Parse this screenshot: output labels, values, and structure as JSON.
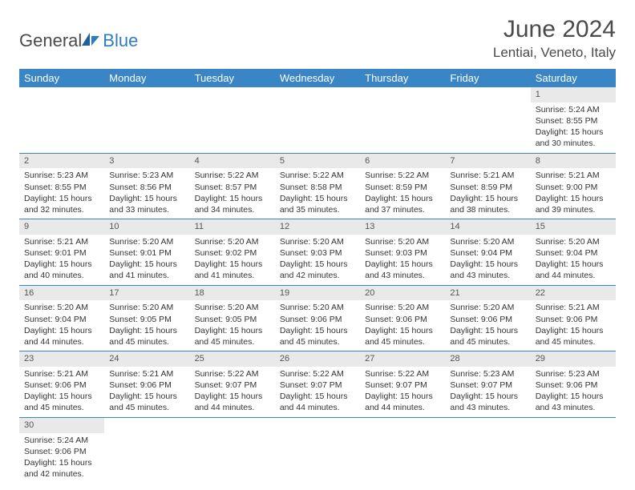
{
  "brand": {
    "name1": "General",
    "name2": "Blue"
  },
  "title": "June 2024",
  "location": "Lentiai, Veneto, Italy",
  "colors": {
    "header_bg": "#3a85c6",
    "header_text": "#ffffff",
    "daynum_bg": "#e9e9e9",
    "border": "#3a85c6",
    "logo_blue": "#2f7cc0",
    "text": "#333333"
  },
  "weekdays": [
    "Sunday",
    "Monday",
    "Tuesday",
    "Wednesday",
    "Thursday",
    "Friday",
    "Saturday"
  ],
  "weeks": [
    [
      {
        "empty": true
      },
      {
        "empty": true
      },
      {
        "empty": true
      },
      {
        "empty": true
      },
      {
        "empty": true
      },
      {
        "empty": true
      },
      {
        "day": "1",
        "sunrise": "Sunrise: 5:24 AM",
        "sunset": "Sunset: 8:55 PM",
        "daylight": "Daylight: 15 hours and 30 minutes."
      }
    ],
    [
      {
        "day": "2",
        "sunrise": "Sunrise: 5:23 AM",
        "sunset": "Sunset: 8:55 PM",
        "daylight": "Daylight: 15 hours and 32 minutes."
      },
      {
        "day": "3",
        "sunrise": "Sunrise: 5:23 AM",
        "sunset": "Sunset: 8:56 PM",
        "daylight": "Daylight: 15 hours and 33 minutes."
      },
      {
        "day": "4",
        "sunrise": "Sunrise: 5:22 AM",
        "sunset": "Sunset: 8:57 PM",
        "daylight": "Daylight: 15 hours and 34 minutes."
      },
      {
        "day": "5",
        "sunrise": "Sunrise: 5:22 AM",
        "sunset": "Sunset: 8:58 PM",
        "daylight": "Daylight: 15 hours and 35 minutes."
      },
      {
        "day": "6",
        "sunrise": "Sunrise: 5:22 AM",
        "sunset": "Sunset: 8:59 PM",
        "daylight": "Daylight: 15 hours and 37 minutes."
      },
      {
        "day": "7",
        "sunrise": "Sunrise: 5:21 AM",
        "sunset": "Sunset: 8:59 PM",
        "daylight": "Daylight: 15 hours and 38 minutes."
      },
      {
        "day": "8",
        "sunrise": "Sunrise: 5:21 AM",
        "sunset": "Sunset: 9:00 PM",
        "daylight": "Daylight: 15 hours and 39 minutes."
      }
    ],
    [
      {
        "day": "9",
        "sunrise": "Sunrise: 5:21 AM",
        "sunset": "Sunset: 9:01 PM",
        "daylight": "Daylight: 15 hours and 40 minutes."
      },
      {
        "day": "10",
        "sunrise": "Sunrise: 5:20 AM",
        "sunset": "Sunset: 9:01 PM",
        "daylight": "Daylight: 15 hours and 41 minutes."
      },
      {
        "day": "11",
        "sunrise": "Sunrise: 5:20 AM",
        "sunset": "Sunset: 9:02 PM",
        "daylight": "Daylight: 15 hours and 41 minutes."
      },
      {
        "day": "12",
        "sunrise": "Sunrise: 5:20 AM",
        "sunset": "Sunset: 9:03 PM",
        "daylight": "Daylight: 15 hours and 42 minutes."
      },
      {
        "day": "13",
        "sunrise": "Sunrise: 5:20 AM",
        "sunset": "Sunset: 9:03 PM",
        "daylight": "Daylight: 15 hours and 43 minutes."
      },
      {
        "day": "14",
        "sunrise": "Sunrise: 5:20 AM",
        "sunset": "Sunset: 9:04 PM",
        "daylight": "Daylight: 15 hours and 43 minutes."
      },
      {
        "day": "15",
        "sunrise": "Sunrise: 5:20 AM",
        "sunset": "Sunset: 9:04 PM",
        "daylight": "Daylight: 15 hours and 44 minutes."
      }
    ],
    [
      {
        "day": "16",
        "sunrise": "Sunrise: 5:20 AM",
        "sunset": "Sunset: 9:04 PM",
        "daylight": "Daylight: 15 hours and 44 minutes."
      },
      {
        "day": "17",
        "sunrise": "Sunrise: 5:20 AM",
        "sunset": "Sunset: 9:05 PM",
        "daylight": "Daylight: 15 hours and 45 minutes."
      },
      {
        "day": "18",
        "sunrise": "Sunrise: 5:20 AM",
        "sunset": "Sunset: 9:05 PM",
        "daylight": "Daylight: 15 hours and 45 minutes."
      },
      {
        "day": "19",
        "sunrise": "Sunrise: 5:20 AM",
        "sunset": "Sunset: 9:06 PM",
        "daylight": "Daylight: 15 hours and 45 minutes."
      },
      {
        "day": "20",
        "sunrise": "Sunrise: 5:20 AM",
        "sunset": "Sunset: 9:06 PM",
        "daylight": "Daylight: 15 hours and 45 minutes."
      },
      {
        "day": "21",
        "sunrise": "Sunrise: 5:20 AM",
        "sunset": "Sunset: 9:06 PM",
        "daylight": "Daylight: 15 hours and 45 minutes."
      },
      {
        "day": "22",
        "sunrise": "Sunrise: 5:21 AM",
        "sunset": "Sunset: 9:06 PM",
        "daylight": "Daylight: 15 hours and 45 minutes."
      }
    ],
    [
      {
        "day": "23",
        "sunrise": "Sunrise: 5:21 AM",
        "sunset": "Sunset: 9:06 PM",
        "daylight": "Daylight: 15 hours and 45 minutes."
      },
      {
        "day": "24",
        "sunrise": "Sunrise: 5:21 AM",
        "sunset": "Sunset: 9:06 PM",
        "daylight": "Daylight: 15 hours and 45 minutes."
      },
      {
        "day": "25",
        "sunrise": "Sunrise: 5:22 AM",
        "sunset": "Sunset: 9:07 PM",
        "daylight": "Daylight: 15 hours and 44 minutes."
      },
      {
        "day": "26",
        "sunrise": "Sunrise: 5:22 AM",
        "sunset": "Sunset: 9:07 PM",
        "daylight": "Daylight: 15 hours and 44 minutes."
      },
      {
        "day": "27",
        "sunrise": "Sunrise: 5:22 AM",
        "sunset": "Sunset: 9:07 PM",
        "daylight": "Daylight: 15 hours and 44 minutes."
      },
      {
        "day": "28",
        "sunrise": "Sunrise: 5:23 AM",
        "sunset": "Sunset: 9:07 PM",
        "daylight": "Daylight: 15 hours and 43 minutes."
      },
      {
        "day": "29",
        "sunrise": "Sunrise: 5:23 AM",
        "sunset": "Sunset: 9:06 PM",
        "daylight": "Daylight: 15 hours and 43 minutes."
      }
    ],
    [
      {
        "day": "30",
        "sunrise": "Sunrise: 5:24 AM",
        "sunset": "Sunset: 9:06 PM",
        "daylight": "Daylight: 15 hours and 42 minutes."
      },
      {
        "empty": true
      },
      {
        "empty": true
      },
      {
        "empty": true
      },
      {
        "empty": true
      },
      {
        "empty": true
      },
      {
        "empty": true
      }
    ]
  ]
}
